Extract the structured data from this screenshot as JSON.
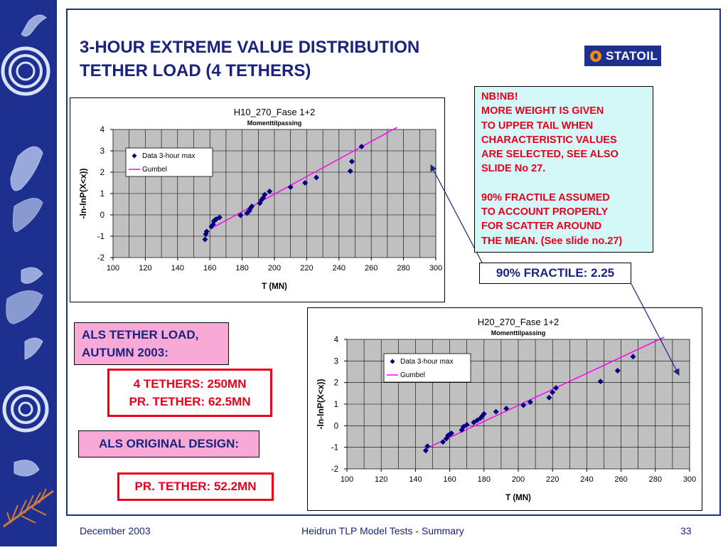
{
  "slide": {
    "title_line1": "3-HOUR EXTREME VALUE DISTRIBUTION",
    "title_line2": "TETHER LOAD (4 TETHERS)",
    "logo_text": "STATOIL",
    "colors": {
      "navy": "#1d2f8f",
      "red": "#e8001c",
      "pink": "#f9a9d6",
      "cyan": "#d4f7f7",
      "magenta": "#ff00ff",
      "plot_bg": "#c0c0c0"
    }
  },
  "note": {
    "line1": "NB!NB!",
    "line2": "MORE WEIGHT IS GIVEN",
    "line3": "TO UPPER TAIL WHEN",
    "line4": "CHARACTERISTIC VALUES",
    "line5": "ARE SELECTED, SEE ALSO",
    "line6": "SLIDE No 27.",
    "line7": "90% FRACTILE ASSUMED",
    "line8": "TO ACCOUNT PROPERLY",
    "line9": "FOR SCATTER AROUND",
    "line10": "THE MEAN. (See slide no.27)"
  },
  "fractile": "90% FRACTILE: 2.25",
  "als_load": {
    "line1": "ALS TETHER LOAD,",
    "line2": "AUTUMN 2003:"
  },
  "tethers": {
    "line1": "4 TETHERS: 250MN",
    "line2": "PR. TETHER: 62.5MN"
  },
  "als_original": "ALS ORIGINAL DESIGN:",
  "pr_tether": "PR. TETHER: 52.2MN",
  "footer": {
    "date": "December 2003",
    "center": "Heidrun TLP Model Tests - Summary",
    "page": "33"
  },
  "chart_data": [
    {
      "type": "scatter",
      "title": "H10_270_Fase 1+2",
      "subtitle": "Momenttilpassing",
      "xlabel": "T (MN)",
      "ylabel": "-ln-lnP(X<x))",
      "xlim": [
        100,
        300
      ],
      "ylim": [
        -2,
        4
      ],
      "xticks": [
        "100",
        "120",
        "140",
        "160",
        "180",
        "200",
        "220",
        "240",
        "260",
        "280",
        "300"
      ],
      "yticks": [
        "4",
        "3",
        "2",
        "1",
        "0",
        "-1",
        "-2"
      ],
      "grid": true,
      "legend_position": "top-left",
      "series": [
        {
          "name": "Data 3-hour max",
          "marker": "diamond",
          "color": "#000080",
          "x": [
            157,
            157.5,
            158,
            161,
            162,
            162.5,
            163,
            164,
            166,
            179,
            183,
            184,
            184.5,
            185,
            186,
            191,
            192,
            193,
            194,
            197,
            210,
            219,
            226,
            247,
            248,
            254
          ],
          "y": [
            -1.15,
            -0.9,
            -0.78,
            -0.55,
            -0.45,
            -0.3,
            -0.25,
            -0.2,
            -0.12,
            -0.02,
            0.08,
            0.15,
            0.2,
            0.3,
            0.4,
            0.55,
            0.7,
            0.8,
            0.95,
            1.1,
            1.3,
            1.5,
            1.75,
            2.05,
            2.5,
            3.2
          ]
        },
        {
          "name": "Gumbel",
          "color": "#ff00ff",
          "x": [
            163,
            276
          ],
          "y": [
            -0.55,
            4.1
          ]
        }
      ]
    },
    {
      "type": "scatter",
      "title": "H20_270_Fase 1+2",
      "subtitle": "Momenttilpassing",
      "xlabel": "T (MN)",
      "ylabel": "-ln-lnP(X<x))",
      "xlim": [
        100,
        300
      ],
      "ylim": [
        -2,
        4
      ],
      "xticks": [
        "100",
        "120",
        "140",
        "160",
        "180",
        "200",
        "220",
        "240",
        "260",
        "280",
        "300"
      ],
      "yticks": [
        "4",
        "3",
        "2",
        "1",
        "0",
        "-1",
        "-2"
      ],
      "grid": true,
      "legend_position": "top-center",
      "series": [
        {
          "name": "Data 3-hour max",
          "marker": "diamond",
          "color": "#000080",
          "x": [
            146,
            147,
            156,
            158,
            159,
            160,
            161,
            167,
            168,
            170,
            174,
            176,
            178,
            179,
            180,
            187,
            193,
            203,
            207,
            218,
            220,
            222,
            248,
            258,
            267
          ],
          "y": [
            -1.15,
            -0.95,
            -0.75,
            -0.6,
            -0.45,
            -0.4,
            -0.35,
            -0.2,
            -0.05,
            0.05,
            0.15,
            0.25,
            0.35,
            0.45,
            0.55,
            0.65,
            0.8,
            0.95,
            1.1,
            1.3,
            1.55,
            1.75,
            2.05,
            2.55,
            3.2
          ]
        },
        {
          "name": "Gumbel",
          "color": "#ff00ff",
          "x": [
            145,
            285
          ],
          "y": [
            -1.1,
            4.1
          ]
        }
      ]
    }
  ]
}
